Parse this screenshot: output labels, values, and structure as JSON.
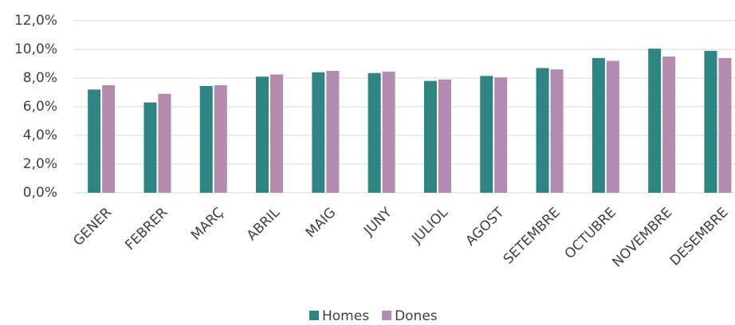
{
  "chart_data": {
    "type": "bar",
    "categories": [
      "GENER",
      "FEBRER",
      "MARÇ",
      "ABRIL",
      "MAIG",
      "JUNY",
      "JULIOL",
      "AGOST",
      "SETEMBRE",
      "OCTUBRE",
      "NOVEMBRE",
      "DESEMBRE"
    ],
    "series": [
      {
        "name": "Homes",
        "color": "#2e8581",
        "values": [
          7.2,
          6.3,
          7.45,
          8.1,
          8.4,
          8.35,
          7.8,
          8.15,
          8.7,
          9.4,
          10.05,
          9.9
        ]
      },
      {
        "name": "Dones",
        "color": "#b48bb0",
        "values": [
          7.5,
          6.9,
          7.5,
          8.25,
          8.5,
          8.45,
          7.9,
          8.05,
          8.6,
          9.2,
          9.5,
          9.4
        ]
      }
    ],
    "ylim": [
      0,
      12
    ],
    "yticks": [
      {
        "value": 0,
        "label": "0,0%"
      },
      {
        "value": 2,
        "label": "2,0%"
      },
      {
        "value": 4,
        "label": "4,0%"
      },
      {
        "value": 6,
        "label": "6,0%"
      },
      {
        "value": 8,
        "label": "8,0%"
      },
      {
        "value": 10,
        "label": "10,0%"
      },
      {
        "value": 12,
        "label": "12,0%"
      }
    ],
    "grid": true,
    "legend": "bottom"
  }
}
